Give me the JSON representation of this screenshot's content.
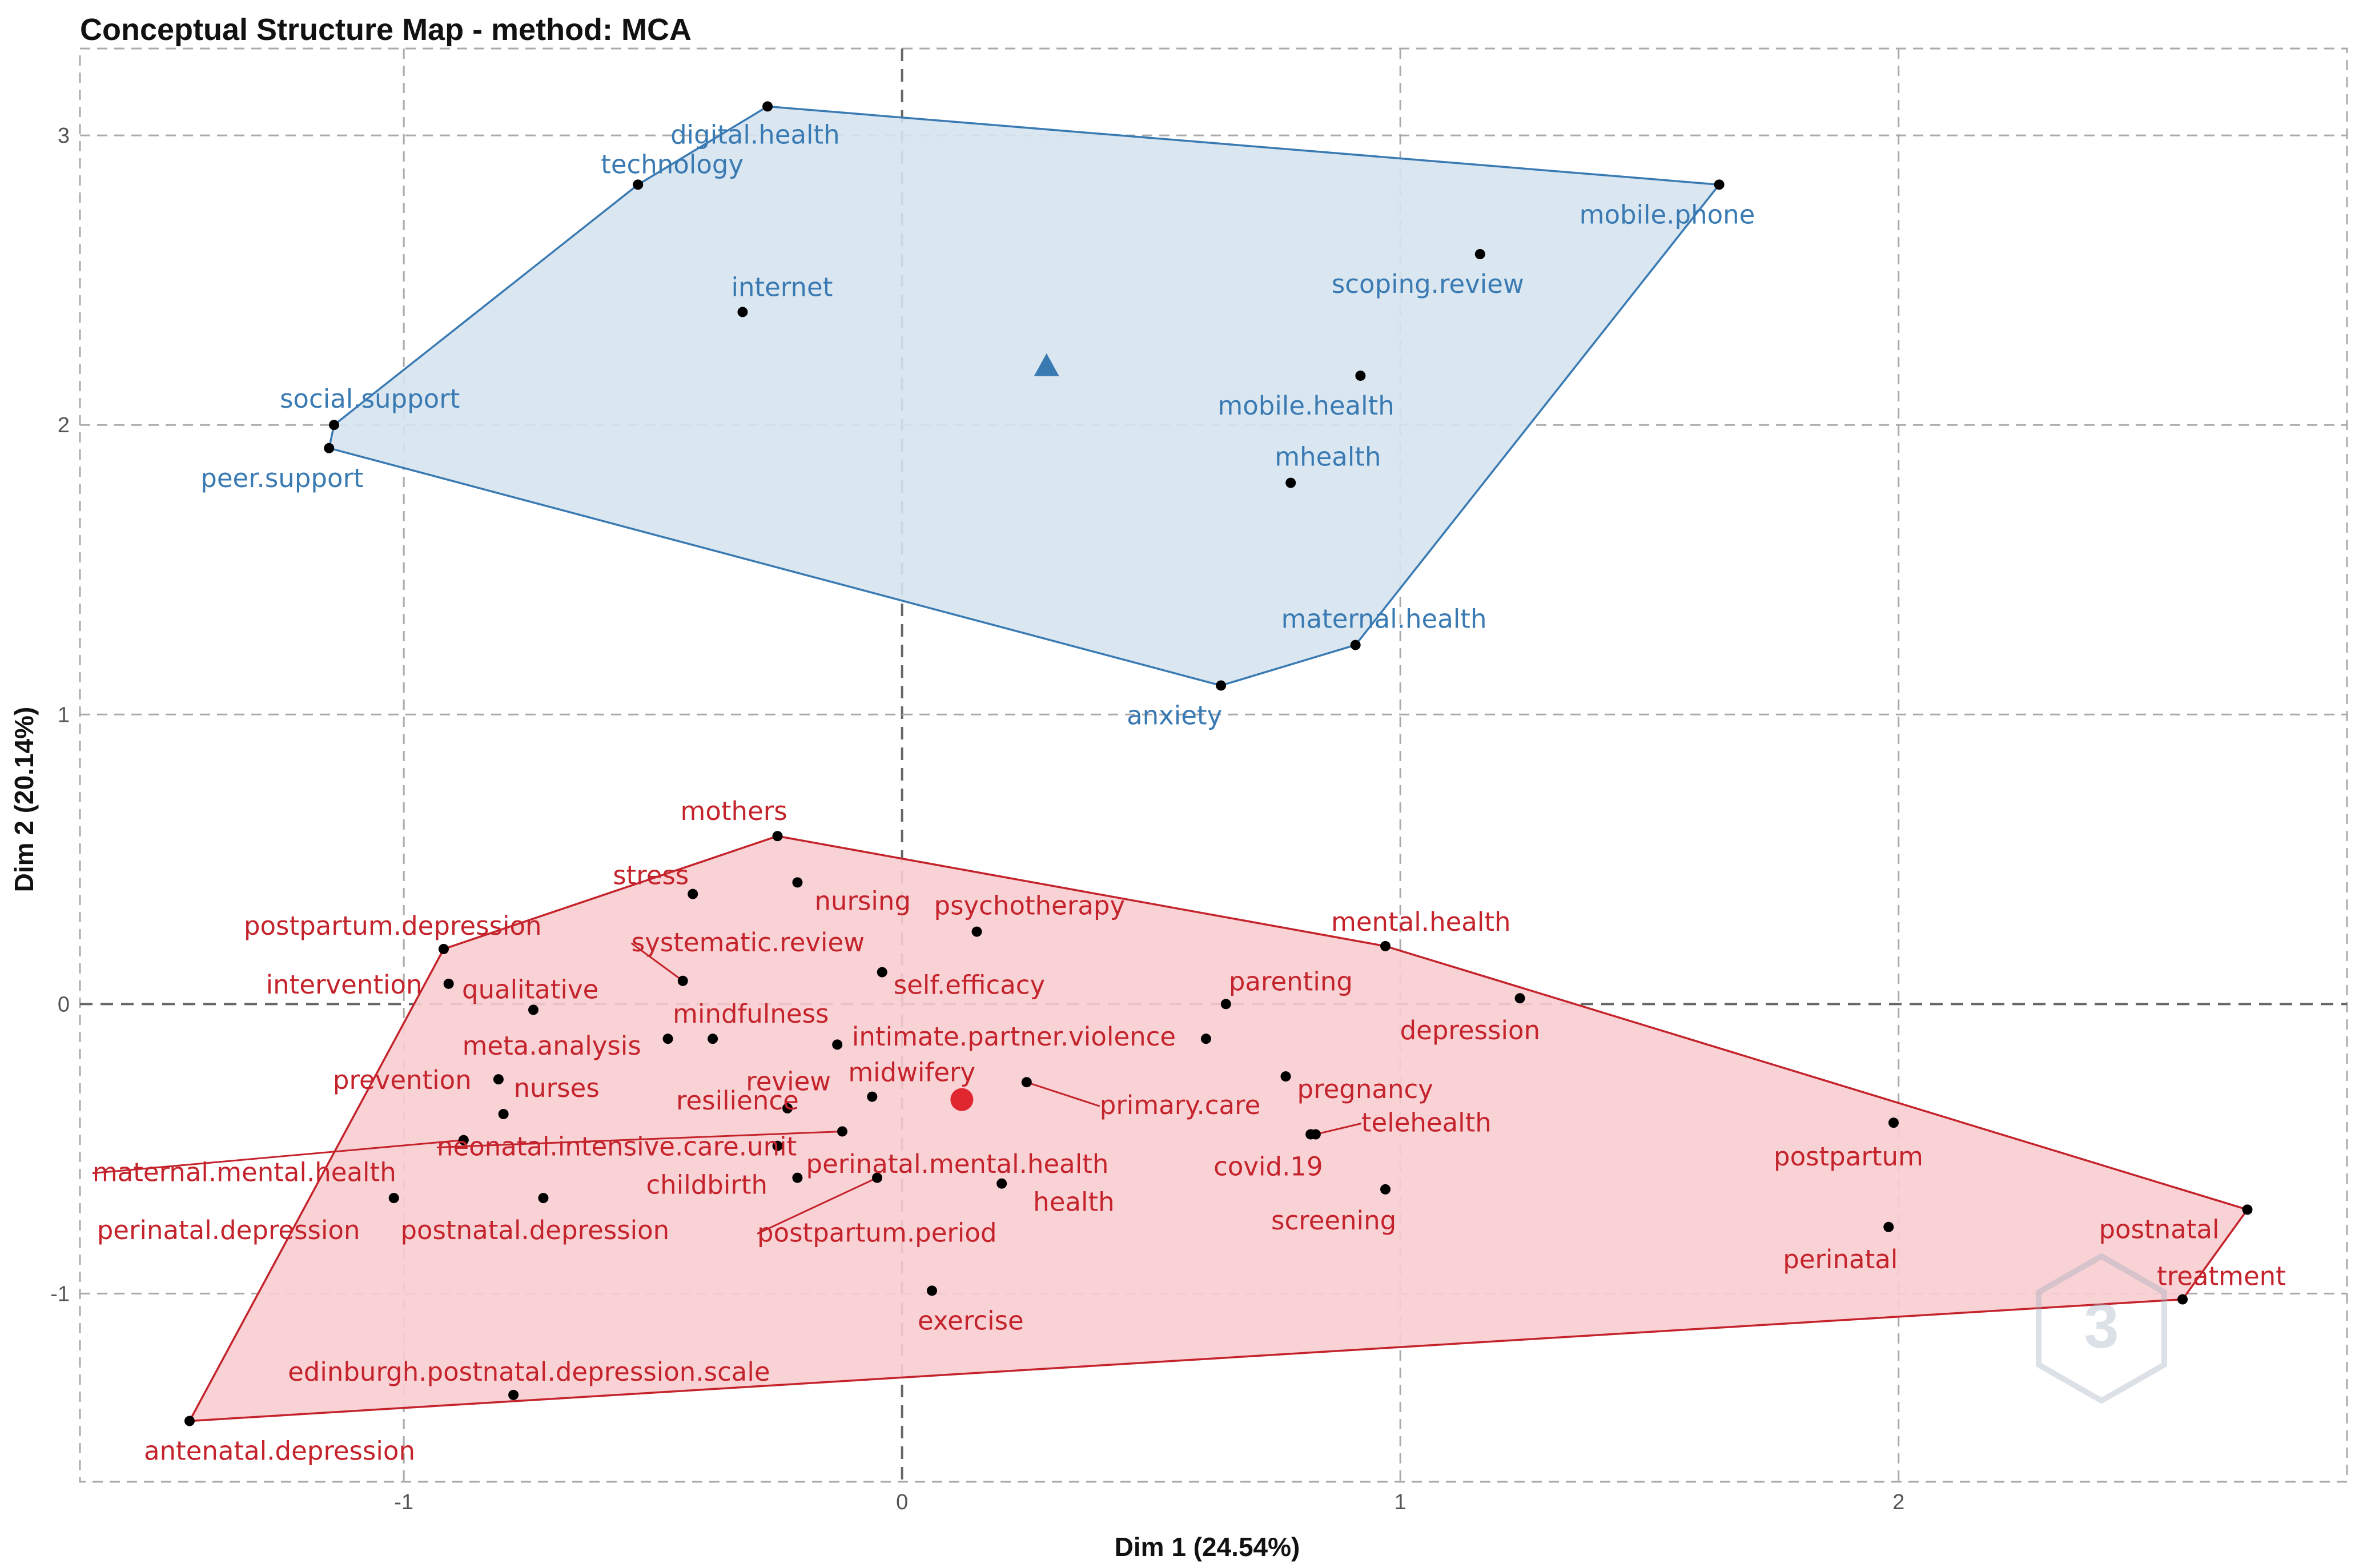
{
  "chart_data": {
    "type": "scatter",
    "title": "Conceptual Structure Map - method: MCA",
    "xlabel": "Dim 1 (24.54%)",
    "ylabel": "Dim 2 (20.14%)",
    "xlim": [
      -1.65,
      2.9
    ],
    "ylim": [
      -1.65,
      3.3
    ],
    "xticks": [
      -1,
      0,
      1,
      2
    ],
    "yticks": [
      -1,
      0,
      1,
      2,
      3
    ],
    "grid": true,
    "colors": {
      "cluster1": "#3a7ab3",
      "cluster2": "#c4232b",
      "fill1": "#d6e4f0",
      "fill2": "#f8cdd0"
    },
    "clusters": [
      {
        "id": "cluster1",
        "centroid": {
          "x": 0.29,
          "y": 2.2,
          "marker": "triangle"
        },
        "hull": [
          [
            -0.27,
            3.1
          ],
          [
            1.64,
            2.83
          ],
          [
            0.91,
            1.24
          ],
          [
            0.64,
            1.1
          ],
          [
            -1.15,
            1.92
          ],
          [
            -1.14,
            2.0
          ],
          [
            -0.53,
            2.83
          ]
        ],
        "points": [
          {
            "label": "digital.health",
            "x": -0.27,
            "y": 3.1
          },
          {
            "label": "technology",
            "x": -0.53,
            "y": 2.83
          },
          {
            "label": "mobile.phone",
            "x": 1.64,
            "y": 2.83
          },
          {
            "label": "scoping.review",
            "x": 1.16,
            "y": 2.59
          },
          {
            "label": "internet",
            "x": -0.32,
            "y": 2.39
          },
          {
            "label": "mobile.health",
            "x": 0.92,
            "y": 2.17
          },
          {
            "label": "social.support",
            "x": -1.14,
            "y": 2.0
          },
          {
            "label": "peer.support",
            "x": -1.15,
            "y": 1.92
          },
          {
            "label": "mhealth",
            "x": 0.78,
            "y": 1.8
          },
          {
            "label": "maternal.health",
            "x": 0.91,
            "y": 1.24
          },
          {
            "label": "anxiety",
            "x": 0.64,
            "y": 1.1
          }
        ]
      },
      {
        "id": "cluster2",
        "centroid": {
          "x": 0.12,
          "y": -0.33,
          "marker": "circle"
        },
        "hull": [
          [
            -0.25,
            0.58
          ],
          [
            0.97,
            0.2
          ],
          [
            2.7,
            -0.71
          ],
          [
            2.57,
            -1.02
          ],
          [
            -1.43,
            -1.44
          ],
          [
            -0.92,
            0.19
          ]
        ],
        "points": [
          {
            "label": "mothers",
            "x": -0.25,
            "y": 0.58
          },
          {
            "label": "nursing",
            "x": -0.21,
            "y": 0.42
          },
          {
            "label": "stress",
            "x": -0.42,
            "y": 0.38
          },
          {
            "label": "psychotherapy",
            "x": 0.15,
            "y": 0.25
          },
          {
            "label": "postpartum.depression",
            "x": -0.92,
            "y": 0.19
          },
          {
            "label": "mental.health",
            "x": 0.97,
            "y": 0.2
          },
          {
            "label": "self.efficacy",
            "x": -0.04,
            "y": 0.11
          },
          {
            "label": "systematic.review",
            "x": -0.44,
            "y": 0.08
          },
          {
            "label": "intervention",
            "x": -0.91,
            "y": 0.07
          },
          {
            "label": "parenting",
            "x": 0.65,
            "y": 0.0
          },
          {
            "label": "depression",
            "x": 1.24,
            "y": 0.02
          },
          {
            "label": "qualitative",
            "x": -0.74,
            "y": -0.02
          },
          {
            "label": "mindfulness",
            "x": -0.38,
            "y": -0.12
          },
          {
            "label": "meta.analysis",
            "x": -0.47,
            "y": -0.12
          },
          {
            "label": "intimate.partner.violence",
            "x": 0.61,
            "y": -0.12
          },
          {
            "label": "review",
            "x": -0.13,
            "y": -0.14
          },
          {
            "label": "pregnancy",
            "x": 0.77,
            "y": -0.25
          },
          {
            "label": "prevention",
            "x": -0.81,
            "y": -0.26
          },
          {
            "label": "primary.care",
            "x": 0.25,
            "y": -0.27
          },
          {
            "label": "midwifery",
            "x": -0.06,
            "y": -0.32
          },
          {
            "label": "resilience",
            "x": -0.23,
            "y": -0.36
          },
          {
            "label": "nurses",
            "x": -0.8,
            "y": -0.38
          },
          {
            "label": "neonatal.intensive.care.unit",
            "x": -0.12,
            "y": -0.44
          },
          {
            "label": "telehealth",
            "x": 0.83,
            "y": -0.45
          },
          {
            "label": "covid.19",
            "x": 0.82,
            "y": -0.45
          },
          {
            "label": "maternal.mental.health",
            "x": -0.88,
            "y": -0.47
          },
          {
            "label": "perinatal.mental.health",
            "x": -0.25,
            "y": -0.49
          },
          {
            "label": "postpartum",
            "x": 1.99,
            "y": -0.41
          },
          {
            "label": "childbirth",
            "x": -0.21,
            "y": -0.6
          },
          {
            "label": "postpartum.period",
            "x": -0.05,
            "y": -0.6
          },
          {
            "label": "health",
            "x": 0.2,
            "y": -0.62
          },
          {
            "label": "screening",
            "x": 0.97,
            "y": -0.64
          },
          {
            "label": "perinatal.depression",
            "x": -1.02,
            "y": -0.67
          },
          {
            "label": "postnatal.depression",
            "x": -0.72,
            "y": -0.67
          },
          {
            "label": "perinatal",
            "x": 1.98,
            "y": -0.77
          },
          {
            "label": "postnatal",
            "x": 2.7,
            "y": -0.71
          },
          {
            "label": "treatment",
            "x": 2.57,
            "y": -1.02
          },
          {
            "label": "exercise",
            "x": 0.06,
            "y": -0.99
          },
          {
            "label": "edinburgh.postnatal.depression.scale",
            "x": -0.78,
            "y": -1.35
          },
          {
            "label": "antenatal.depression",
            "x": -1.43,
            "y": -1.44
          }
        ]
      }
    ]
  }
}
